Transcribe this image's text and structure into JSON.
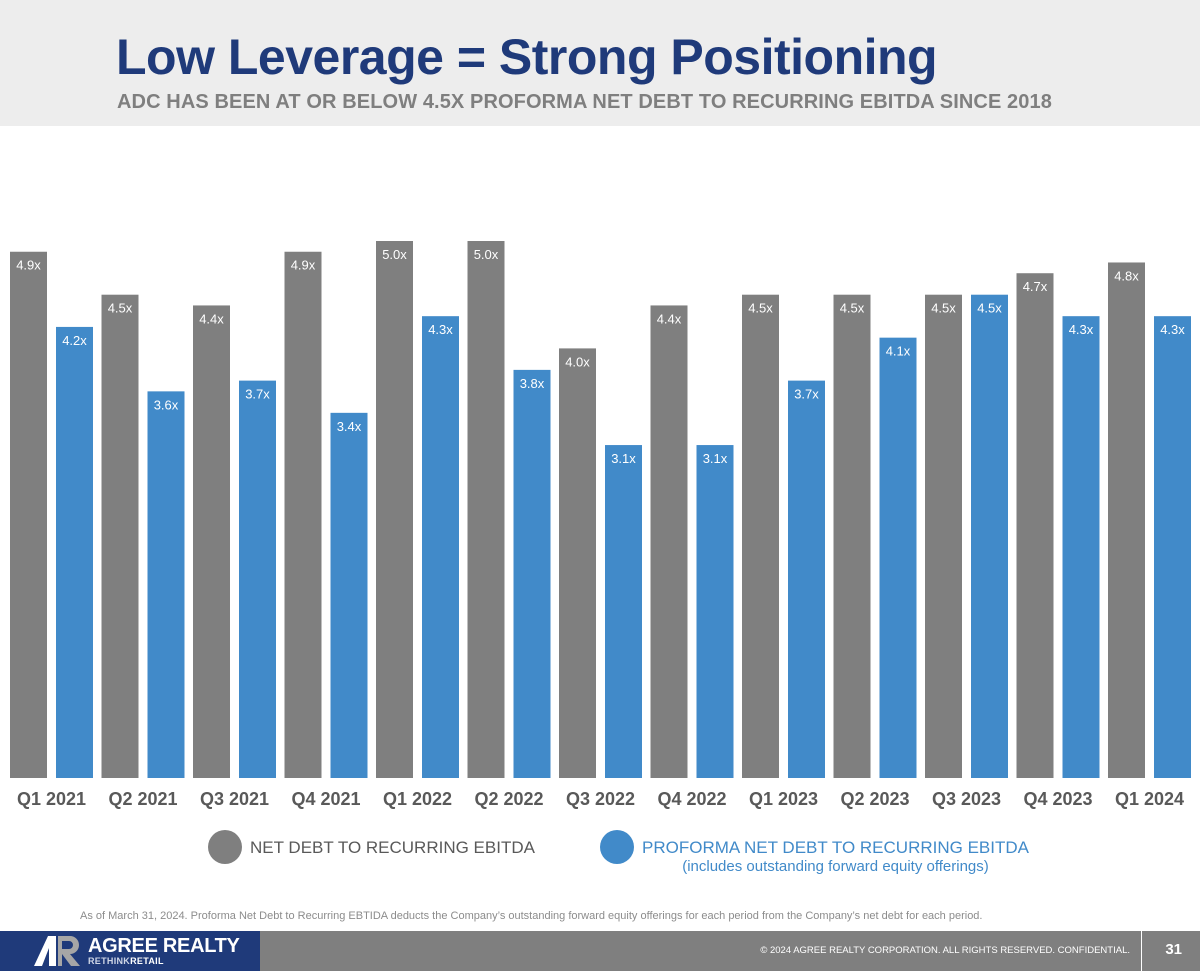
{
  "header": {
    "title": "Low Leverage = Strong Positioning",
    "subtitle": "ADC HAS BEEN AT OR BELOW 4.5X PROFORMA NET DEBT TO RECURRING EBITDA SINCE 2018"
  },
  "chart_data": {
    "type": "bar",
    "title": "",
    "xlabel": "",
    "ylabel": "",
    "ylim": [
      0,
      5.0
    ],
    "grid": false,
    "legend_position": "bottom",
    "categories": [
      "Q1 2021",
      "Q2 2021",
      "Q3 2021",
      "Q4 2021",
      "Q1 2022",
      "Q2 2022",
      "Q3 2022",
      "Q4 2022",
      "Q1 2023",
      "Q2 2023",
      "Q3 2023",
      "Q4 2023",
      "Q1 2024"
    ],
    "series": [
      {
        "name": "NET DEBT TO RECURRING EBITDA",
        "color": "#7f7f7f",
        "values": [
          4.9,
          4.5,
          4.4,
          4.9,
          5.0,
          5.0,
          4.0,
          4.4,
          4.5,
          4.5,
          4.5,
          4.7,
          4.8
        ],
        "labels": [
          "4.9x",
          "4.5x",
          "4.4x",
          "4.9x",
          "5.0x",
          "5.0x",
          "4.0x",
          "4.4x",
          "4.5x",
          "4.5x",
          "4.5x",
          "4.7x",
          "4.8x"
        ]
      },
      {
        "name": "PROFORMA NET DEBT TO RECURRING EBITDA",
        "note": "(includes outstanding forward equity offerings)",
        "color": "#418ac9",
        "values": [
          4.2,
          3.6,
          3.7,
          3.4,
          4.3,
          3.8,
          3.1,
          3.1,
          3.7,
          4.1,
          4.5,
          4.3,
          4.3
        ],
        "labels": [
          "4.2x",
          "3.6x",
          "3.7x",
          "3.4x",
          "4.3x",
          "3.8x",
          "3.1x",
          "3.1x",
          "3.7x",
          "4.1x",
          "4.5x",
          "4.3x",
          "4.3x"
        ]
      }
    ]
  },
  "legend": {
    "items": [
      {
        "label": "NET DEBT TO RECURRING EBITDA",
        "color": "#7f7f7f",
        "text_color": "#595959"
      },
      {
        "label": "PROFORMA NET DEBT TO RECURRING EBITDA",
        "sub": "(includes outstanding forward equity offerings)",
        "color": "#418ac9",
        "text_color": "#418ac9"
      }
    ]
  },
  "footnote": "As of March 31, 2024. Proforma Net Debt to Recurring EBTIDA deducts the Company’s outstanding forward equity offerings for each period from the Company’s net debt for each period.",
  "footer": {
    "brand": "AGREE REALTY",
    "tagline_a": "RETHINK",
    "tagline_b": "RETAIL",
    "copyright": "© 2024 AGREE REALTY CORPORATION. ALL RIGHTS RESERVED. CONFIDENTIAL.",
    "page_number": "31"
  }
}
